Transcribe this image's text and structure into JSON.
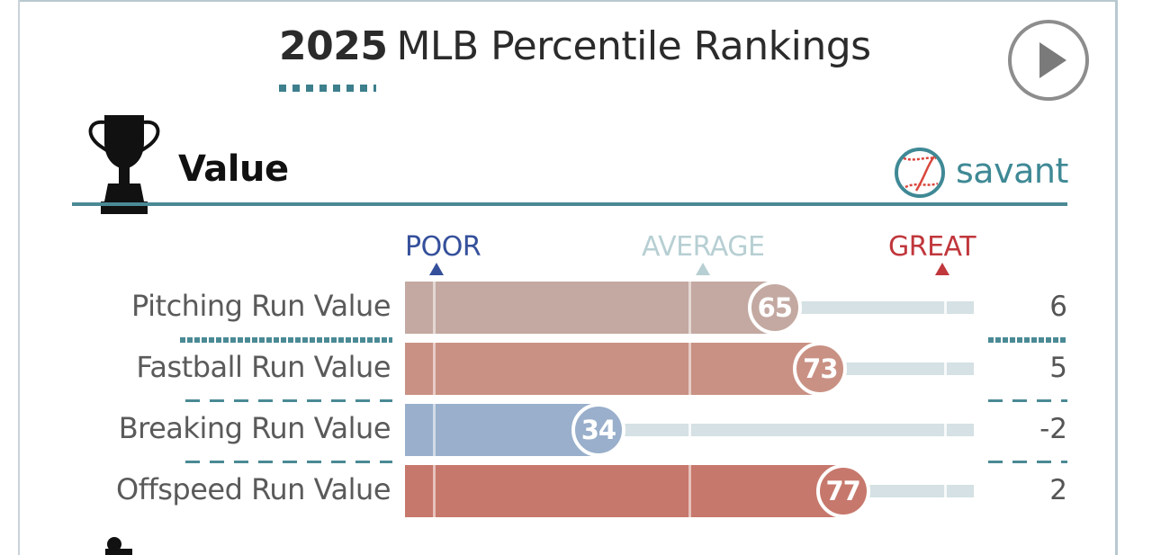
{
  "header": {
    "year": "2025",
    "title_rest": "MLB Percentile Rankings",
    "play_icon": "play-icon"
  },
  "section": {
    "title": "Value",
    "icon": "trophy-icon",
    "brand": "savant",
    "brand_icon": "baseball-icon"
  },
  "scale": {
    "poor": "POOR",
    "average": "AVERAGE",
    "great": "GREAT"
  },
  "colors": {
    "accent": "#4a8a95",
    "poor": "#35509b",
    "average": "#b7cfd3",
    "great": "#c0373c"
  },
  "chart_data": {
    "type": "bar",
    "orientation": "horizontal",
    "title": "2025 MLB Percentile Rankings — Value",
    "xlim": [
      0,
      100
    ],
    "reference_lines": [
      5,
      50,
      95
    ],
    "categories": [
      "Pitching Run Value",
      "Fastball Run Value",
      "Breaking Run Value",
      "Offspeed Run Value"
    ],
    "percentiles": [
      65,
      73,
      34,
      77
    ],
    "values": [
      "6",
      "5",
      "-2",
      "2"
    ],
    "bar_colors": [
      "#c3a9a1",
      "#c99184",
      "#99afcb",
      "#c7786c"
    ]
  },
  "next_section_icon": "batter-icon"
}
